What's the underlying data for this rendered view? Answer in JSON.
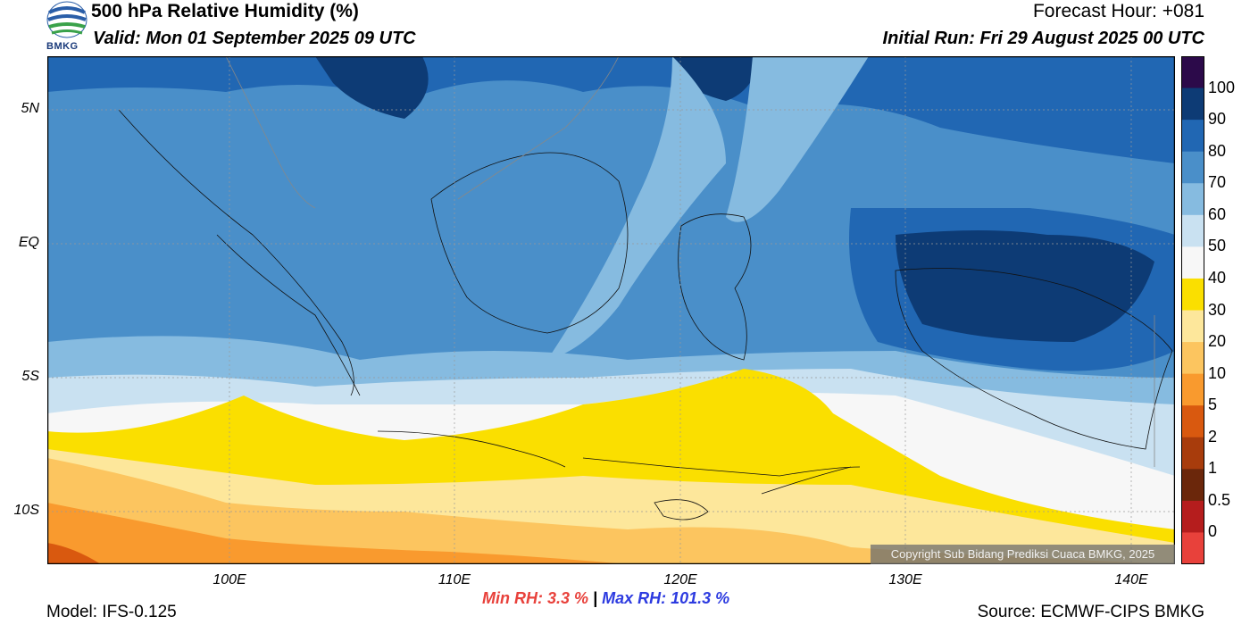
{
  "header": {
    "title": "500 hPa Relative Humidity (%)",
    "valid": "Valid: Mon 01 September 2025 09 UTC",
    "forecast_hour": "Forecast Hour: +081",
    "initial_run": "Initial Run: Fri 29 August 2025 00 UTC",
    "logo_text": "BMKG"
  },
  "map": {
    "lat_labels": [
      "5N",
      "EQ",
      "5S",
      "10S"
    ],
    "lon_labels": [
      "100E",
      "110E",
      "120E",
      "130E",
      "140E"
    ],
    "copyright": "Copyright Sub Bidang Prediksi Cuaca BMKG, 2025"
  },
  "colorbar": {
    "labels": [
      "100",
      "90",
      "80",
      "70",
      "60",
      "50",
      "40",
      "30",
      "20",
      "10",
      "5",
      "2",
      "1",
      "0.5",
      "0"
    ],
    "colors": [
      "#2c0a4a",
      "#0d3b75",
      "#2167b3",
      "#4a8fc9",
      "#86bbe0",
      "#c9e1f1",
      "#f7f7f7",
      "#fadf00",
      "#fde79b",
      "#fcc55f",
      "#f99a2e",
      "#d9590f",
      "#a83c0c",
      "#6b270b",
      "#b51d1d",
      "#e8413b"
    ]
  },
  "stats": {
    "min_label": "Min RH:",
    "min_value": "3.3 %",
    "separator": "|",
    "max_label": "Max RH: 101.3 %"
  },
  "footer": {
    "model": "Model: IFS-0.125",
    "source": "Source: ECMWF-CIPS BMKG"
  }
}
